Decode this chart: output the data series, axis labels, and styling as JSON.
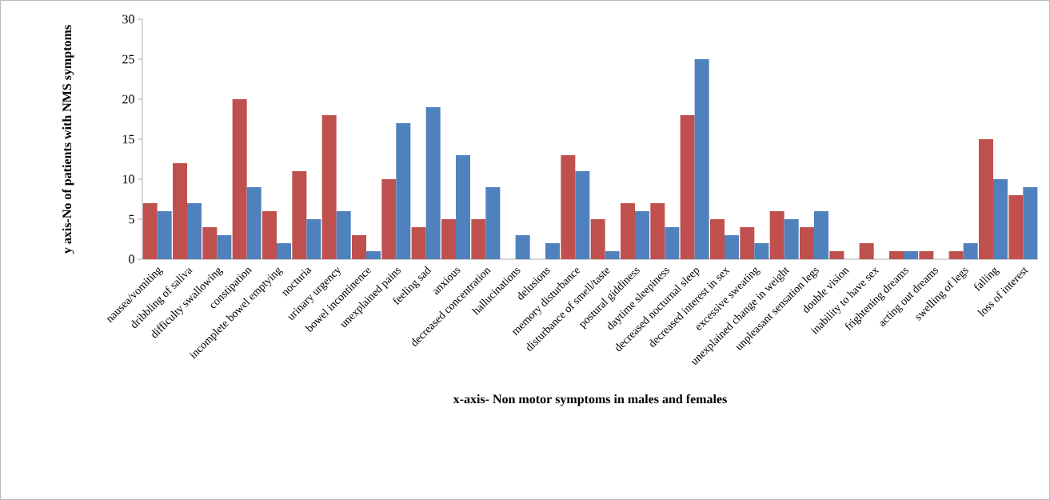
{
  "chart_data": {
    "type": "bar",
    "xlabel": "x-axis- Non motor symptoms in males and females",
    "ylabel": "y axis-No of patients with NMS symptoms",
    "categories": [
      "nausea/vomiting",
      "dribbling of saliva",
      "difficulty swallowing",
      "constipation",
      "incomplete bowel emptying",
      "nocturia",
      "urinary urgency",
      "bowel incontinence",
      "unexplained pains",
      "feeling sad",
      "anxious",
      "decreased concentration",
      "hallucinations",
      "delusions",
      "memory disturbance",
      "disturbance of smell/taste",
      "postural giddiness",
      "daytime sleepiness",
      "decreased nocturnal sleep",
      "decreased interest in sex",
      "excessive sweating",
      "unexplained change in weight",
      "unpleasant sensation legs",
      "double vision",
      "inability to have sex",
      "frightening dreams",
      "acting out dreams",
      "swelling of legs",
      "falling",
      "loss of interest"
    ],
    "series": [
      {
        "color": "#c0504d",
        "values": [
          7,
          12,
          4,
          20,
          6,
          11,
          18,
          3,
          10,
          4,
          5,
          5,
          0,
          0,
          13,
          5,
          7,
          7,
          18,
          5,
          4,
          6,
          4,
          1,
          2,
          1,
          1,
          1,
          15,
          8
        ]
      },
      {
        "color": "#4f81bd",
        "values": [
          6,
          7,
          3,
          9,
          2,
          5,
          6,
          1,
          17,
          19,
          13,
          9,
          3,
          2,
          11,
          1,
          6,
          4,
          25,
          3,
          2,
          5,
          6,
          0,
          0,
          1,
          0,
          2,
          10,
          9
        ]
      }
    ],
    "ylim": [
      0,
      30
    ],
    "yticks": [
      0,
      5,
      10,
      15,
      20,
      25,
      30
    ],
    "grid": false
  }
}
